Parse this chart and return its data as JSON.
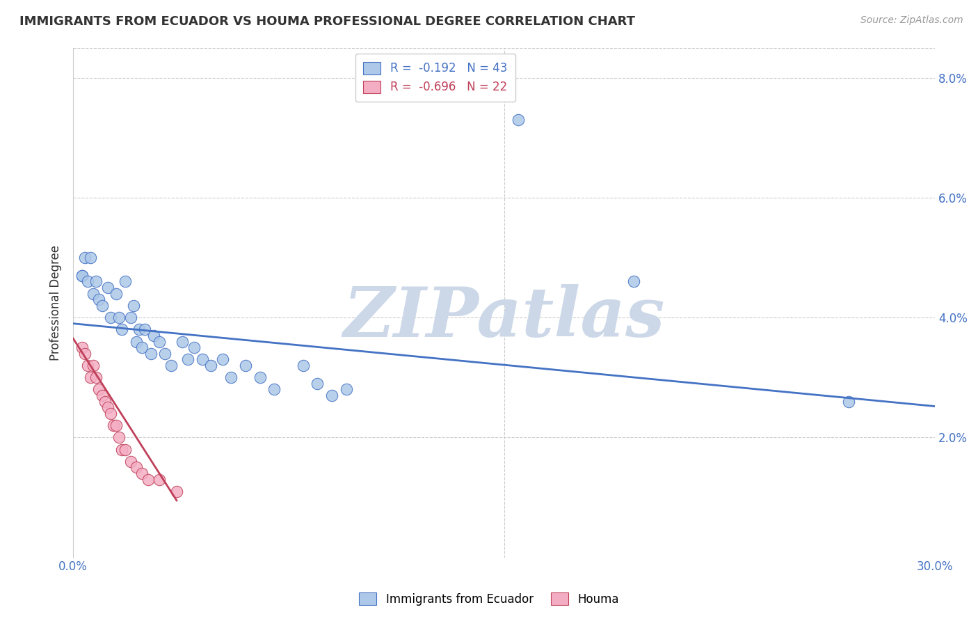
{
  "title": "IMMIGRANTS FROM ECUADOR VS HOUMA PROFESSIONAL DEGREE CORRELATION CHART",
  "source": "Source: ZipAtlas.com",
  "ylabel": "Professional Degree",
  "blue_label": "Immigrants from Ecuador",
  "pink_label": "Houma",
  "blue_R": -0.192,
  "blue_N": 43,
  "pink_R": -0.696,
  "pink_N": 22,
  "blue_color": "#adc8e8",
  "pink_color": "#f4aec4",
  "blue_line_color": "#4472c4",
  "pink_line_color": "#c0405a",
  "blue_scatter_x": [
    0.003,
    0.003,
    0.004,
    0.005,
    0.006,
    0.007,
    0.008,
    0.009,
    0.01,
    0.012,
    0.013,
    0.015,
    0.016,
    0.017,
    0.018,
    0.02,
    0.021,
    0.022,
    0.023,
    0.024,
    0.025,
    0.027,
    0.028,
    0.03,
    0.032,
    0.034,
    0.038,
    0.04,
    0.042,
    0.045,
    0.048,
    0.052,
    0.055,
    0.06,
    0.065,
    0.07,
    0.08,
    0.085,
    0.09,
    0.095,
    0.155,
    0.195,
    0.27
  ],
  "blue_scatter_y": [
    0.047,
    0.047,
    0.05,
    0.046,
    0.05,
    0.044,
    0.046,
    0.043,
    0.042,
    0.045,
    0.04,
    0.044,
    0.04,
    0.038,
    0.046,
    0.04,
    0.042,
    0.036,
    0.038,
    0.035,
    0.038,
    0.034,
    0.037,
    0.036,
    0.034,
    0.032,
    0.036,
    0.033,
    0.035,
    0.033,
    0.032,
    0.033,
    0.03,
    0.032,
    0.03,
    0.028,
    0.032,
    0.029,
    0.027,
    0.028,
    0.073,
    0.046,
    0.026
  ],
  "pink_scatter_x": [
    0.003,
    0.004,
    0.005,
    0.006,
    0.007,
    0.008,
    0.009,
    0.01,
    0.011,
    0.012,
    0.013,
    0.014,
    0.015,
    0.016,
    0.017,
    0.018,
    0.02,
    0.022,
    0.024,
    0.026,
    0.03,
    0.036
  ],
  "pink_scatter_y": [
    0.035,
    0.034,
    0.032,
    0.03,
    0.032,
    0.03,
    0.028,
    0.027,
    0.026,
    0.025,
    0.024,
    0.022,
    0.022,
    0.02,
    0.018,
    0.018,
    0.016,
    0.015,
    0.014,
    0.013,
    0.013,
    0.011
  ],
  "blue_line_x": [
    0.0,
    0.3
  ],
  "blue_line_y": [
    0.039,
    0.0252
  ],
  "pink_line_x": [
    0.0,
    0.036
  ],
  "pink_line_y": [
    0.0365,
    0.0095
  ],
  "xlim": [
    0.0,
    0.3
  ],
  "ylim": [
    0.0,
    0.085
  ],
  "x_ticks": [
    0.0,
    0.3
  ],
  "x_tick_labels": [
    "0.0%",
    "30.0%"
  ],
  "y_ticks": [
    0.0,
    0.02,
    0.04,
    0.06,
    0.08
  ],
  "y_tick_labels": [
    "",
    "2.0%",
    "4.0%",
    "6.0%",
    "8.0%"
  ],
  "background_color": "#ffffff",
  "grid_color": "#cccccc",
  "watermark_text": "ZIPatlas",
  "watermark_color": "#ccd8e8"
}
